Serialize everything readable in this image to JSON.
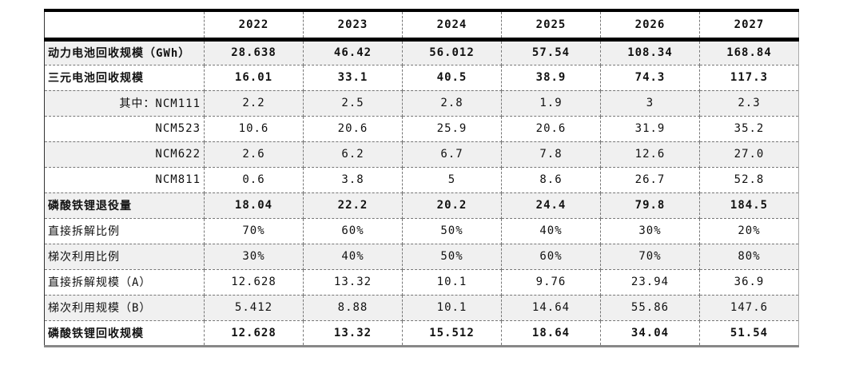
{
  "table": {
    "columns": [
      "2022",
      "2023",
      "2024",
      "2025",
      "2026",
      "2027"
    ],
    "rows": [
      [
        "动力电池回收规模（GWh）",
        "28.638",
        "46.42",
        "56.012",
        "57.54",
        "108.34",
        "168.84"
      ],
      [
        "三元电池回收规模",
        "16.01",
        "33.1",
        "40.5",
        "38.9",
        "74.3",
        "117.3"
      ],
      [
        "其中：NCM111",
        "2.2",
        "2.5",
        "2.8",
        "1.9",
        "3",
        "2.3"
      ],
      [
        "NCM523",
        "10.6",
        "20.6",
        "25.9",
        "20.6",
        "31.9",
        "35.2"
      ],
      [
        "NCM622",
        "2.6",
        "6.2",
        "6.7",
        "7.8",
        "12.6",
        "27.0"
      ],
      [
        "NCM811",
        "0.6",
        "3.8",
        "5",
        "8.6",
        "26.7",
        "52.8"
      ],
      [
        "磷酸铁锂退役量",
        "18.04",
        "22.2",
        "20.2",
        "24.4",
        "79.8",
        "184.5"
      ],
      [
        "直接拆解比例",
        "70%",
        "60%",
        "50%",
        "40%",
        "30%",
        "20%"
      ],
      [
        "梯次利用比例",
        "30%",
        "40%",
        "50%",
        "60%",
        "70%",
        "80%"
      ],
      [
        "直接拆解规模（A）",
        "12.628",
        "13.32",
        "10.1",
        "9.76",
        "23.94",
        "36.9"
      ],
      [
        "梯次利用规模（B）",
        "5.412",
        "8.88",
        "10.1",
        "14.64",
        "55.86",
        "147.6"
      ],
      [
        "磷酸铁锂回收规模",
        "12.628",
        "13.32",
        "15.512",
        "18.64",
        "34.04",
        "51.54"
      ]
    ]
  }
}
